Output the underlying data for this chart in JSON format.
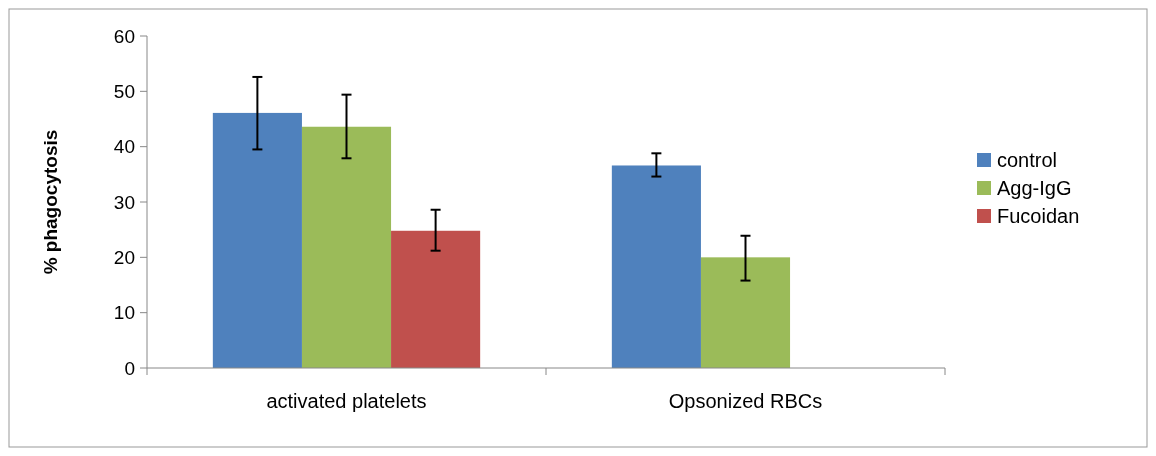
{
  "chart_data": {
    "type": "bar",
    "ylabel": "% phagocytosis",
    "categories": [
      "activated platelets",
      "Opsonized RBCs"
    ],
    "series": [
      {
        "name": "control",
        "color": "#4f81bd",
        "values": [
          46.1,
          36.6
        ],
        "errors": [
          [
            39.5,
            52.6
          ],
          [
            34.6,
            38.8
          ]
        ]
      },
      {
        "name": "Agg-IgG",
        "color": "#9bbb59",
        "values": [
          43.6,
          20.0
        ],
        "errors": [
          [
            37.9,
            49.4
          ],
          [
            15.8,
            23.9
          ]
        ]
      },
      {
        "name": "Fucoidan",
        "color": "#c0504d",
        "values": [
          24.8,
          null
        ],
        "errors": [
          [
            21.2,
            28.6
          ],
          null
        ]
      }
    ],
    "ylim": [
      0,
      60
    ],
    "yticks": [
      0,
      10,
      20,
      30,
      40,
      50,
      60
    ],
    "grid": false,
    "legend": "right"
  }
}
